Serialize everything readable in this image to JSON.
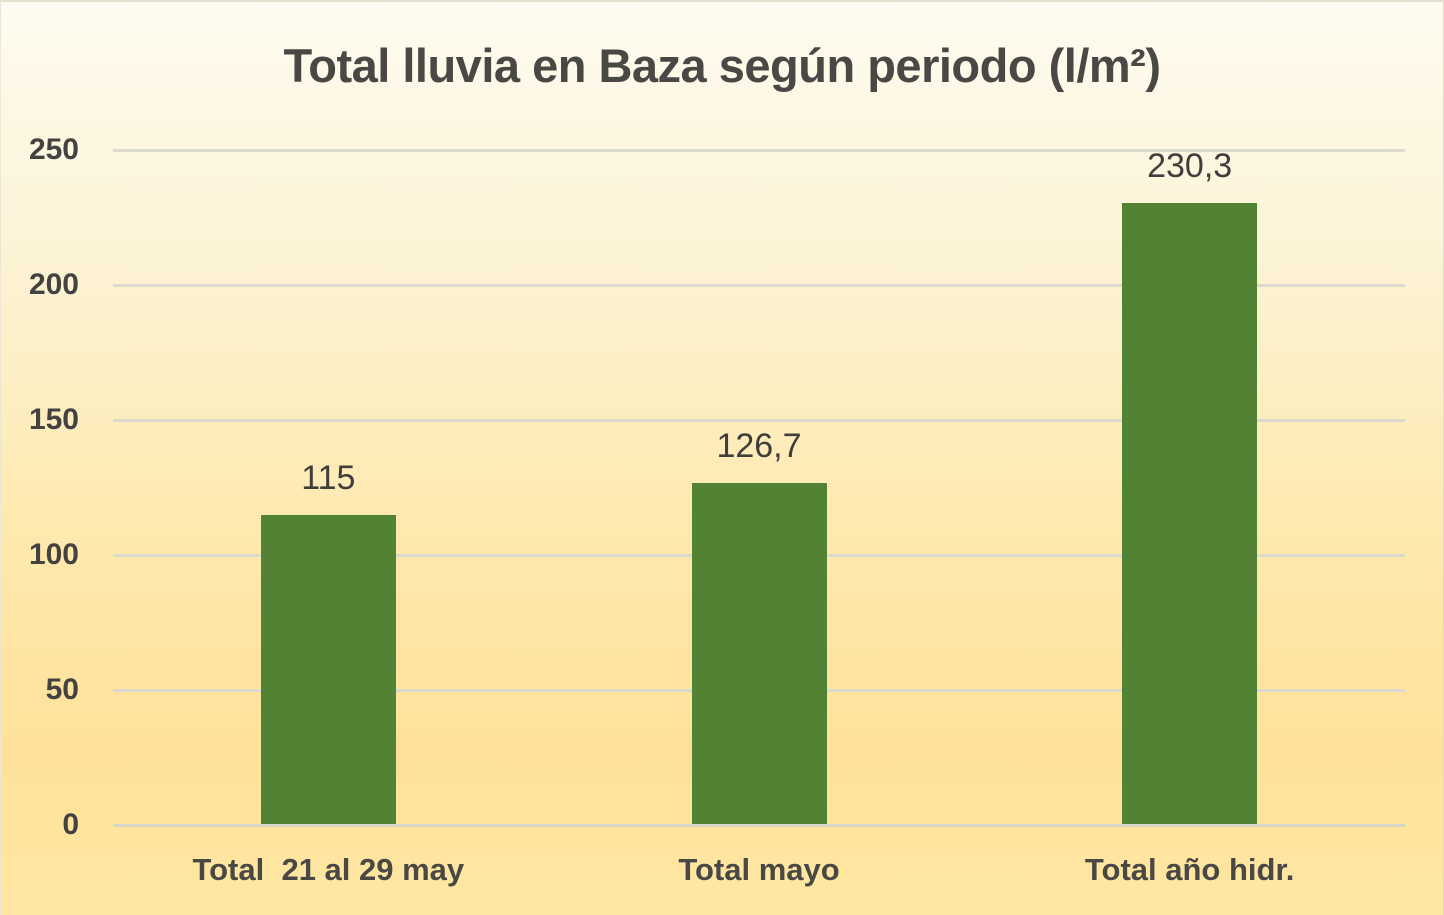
{
  "chart_data": {
    "type": "bar",
    "title": "Total lluvia en Baza según periodo (l/m²)",
    "categories": [
      "Total  21 al 29 may",
      "Total mayo",
      "Total año hidr."
    ],
    "values": [
      115,
      126.7,
      230.3
    ],
    "value_labels": [
      "115",
      "126,7",
      "230,3"
    ],
    "y_ticks": [
      0,
      50,
      100,
      150,
      200,
      250
    ],
    "y_tick_labels": [
      "0",
      "50",
      "100",
      "150",
      "200",
      "250"
    ],
    "ylim": [
      0,
      250
    ],
    "xlabel": "",
    "ylabel": "",
    "grid": true,
    "legend": "none",
    "bar_color": "#528234",
    "gridline_color": "#dcd9ce",
    "text_color": "#4a4844",
    "background_top_color": "#fefbf0",
    "background_bottom_color": "#ffe7a3"
  }
}
